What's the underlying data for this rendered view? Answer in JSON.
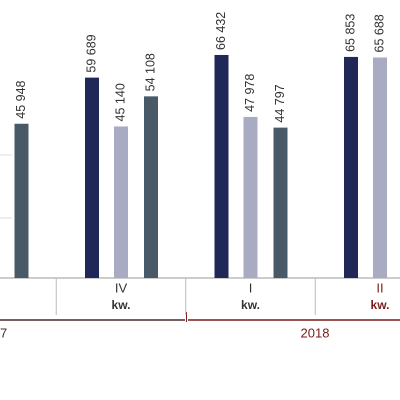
{
  "chart_data": {
    "type": "bar",
    "categories": [
      null,
      "IV",
      "I",
      "II"
    ],
    "sublabels": [
      null,
      "kw.",
      "kw.",
      "kw."
    ],
    "years": [
      "7",
      "2018"
    ],
    "ylim": [
      0,
      70000
    ],
    "series": [
      {
        "color": "#1f2856",
        "values": [
          null,
          59689,
          66432,
          65853
        ],
        "value_labels": [
          null,
          "59 689",
          "66 432",
          "65 853"
        ]
      },
      {
        "color": "#a8abc2",
        "values": [
          null,
          45140,
          47978,
          65688
        ],
        "value_labels": [
          null,
          "45 140",
          "47 978",
          "65 688"
        ]
      },
      {
        "color": "#485a68",
        "values": [
          45948,
          54108,
          44797,
          null
        ],
        "value_labels": [
          "45 948",
          "54 108",
          "44 797",
          null
        ]
      }
    ]
  }
}
